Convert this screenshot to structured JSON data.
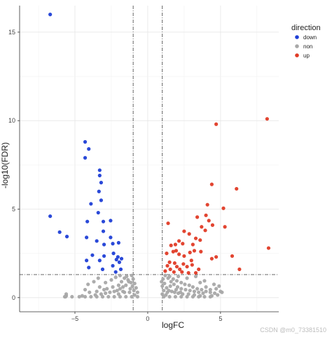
{
  "chart_data": {
    "type": "scatter",
    "xlabel": "logFC",
    "ylabel": "-log10(FDR)",
    "xlim": [
      -8.8,
      9.0
    ],
    "ylim": [
      -0.8,
      16.5
    ],
    "xticks": [
      -5,
      0,
      5
    ],
    "yticks": [
      0,
      5,
      10,
      15
    ],
    "grid": true,
    "legend": {
      "title": "direction",
      "placement": "top-right"
    },
    "thresholds": {
      "logFC": [
        -1,
        1
      ],
      "neg_log10_fdr": 1.3
    },
    "series": [
      {
        "name": "down",
        "color": "#1f3fd6",
        "points": [
          [
            -6.7,
            16.0
          ],
          [
            -4.3,
            8.8
          ],
          [
            -4.05,
            8.4
          ],
          [
            -4.3,
            7.9
          ],
          [
            -3.3,
            7.2
          ],
          [
            -3.3,
            6.9
          ],
          [
            -3.2,
            6.5
          ],
          [
            -3.35,
            6.0
          ],
          [
            -3.2,
            5.5
          ],
          [
            -3.9,
            5.3
          ],
          [
            -3.4,
            4.8
          ],
          [
            -6.7,
            4.6
          ],
          [
            -6.05,
            3.7
          ],
          [
            -5.55,
            3.45
          ],
          [
            -4.15,
            4.3
          ],
          [
            -3.05,
            4.3
          ],
          [
            -2.55,
            4.35
          ],
          [
            -3.05,
            3.75
          ],
          [
            -2.55,
            3.4
          ],
          [
            -4.2,
            3.4
          ],
          [
            -3.5,
            3.2
          ],
          [
            -3.0,
            3.0
          ],
          [
            -2.4,
            3.05
          ],
          [
            -2.0,
            3.1
          ],
          [
            -2.35,
            2.5
          ],
          [
            -3.8,
            2.4
          ],
          [
            -3.0,
            2.35
          ],
          [
            -2.05,
            2.3
          ],
          [
            -1.8,
            2.2
          ],
          [
            -2.15,
            2.15
          ],
          [
            -4.2,
            2.1
          ],
          [
            -3.3,
            2.1
          ],
          [
            -1.95,
            2.0
          ],
          [
            -2.4,
            1.8
          ],
          [
            -4.05,
            1.7
          ],
          [
            -3.1,
            1.6
          ],
          [
            -1.85,
            1.6
          ],
          [
            -2.2,
            1.45
          ]
        ]
      },
      {
        "name": "non",
        "color": "#a8a8a8",
        "points": [
          [
            -5.7,
            0.05
          ],
          [
            -5.2,
            0.05
          ],
          [
            -4.7,
            0.05
          ],
          [
            -4.3,
            0.05
          ],
          [
            -3.9,
            0.05
          ],
          [
            -3.5,
            0.05
          ],
          [
            -3.1,
            0.05
          ],
          [
            -2.7,
            0.05
          ],
          [
            -2.3,
            0.05
          ],
          [
            -1.9,
            0.05
          ],
          [
            -1.5,
            0.05
          ],
          [
            -1.1,
            0.05
          ],
          [
            -0.7,
            0.05
          ],
          [
            1.1,
            0.05
          ],
          [
            1.5,
            0.05
          ],
          [
            1.9,
            0.05
          ],
          [
            2.3,
            0.05
          ],
          [
            2.7,
            0.05
          ],
          [
            3.1,
            0.05
          ],
          [
            3.5,
            0.05
          ],
          [
            3.9,
            0.05
          ],
          [
            4.3,
            0.05
          ],
          [
            -5.6,
            0.1
          ],
          [
            -0.9,
            0.15
          ],
          [
            -0.7,
            0.3
          ],
          [
            -0.8,
            0.55
          ],
          [
            -0.9,
            0.8
          ],
          [
            -1.0,
            1.05
          ],
          [
            -1.1,
            1.25
          ],
          [
            -1.3,
            0.9
          ],
          [
            -1.5,
            0.7
          ],
          [
            -1.7,
            0.6
          ],
          [
            -1.9,
            0.5
          ],
          [
            -2.1,
            0.4
          ],
          [
            -2.3,
            0.35
          ],
          [
            -2.6,
            0.3
          ],
          [
            -2.9,
            0.25
          ],
          [
            -3.2,
            0.2
          ],
          [
            -3.6,
            0.15
          ],
          [
            -1.6,
            1.1
          ],
          [
            -1.8,
            0.9
          ],
          [
            -2.0,
            0.7
          ],
          [
            -2.4,
            0.6
          ],
          [
            -2.8,
            0.5
          ],
          [
            -3.0,
            0.45
          ],
          [
            -3.3,
            0.6
          ],
          [
            -2.9,
            0.85
          ],
          [
            -2.5,
            1.0
          ],
          [
            -2.2,
            1.15
          ],
          [
            -1.9,
            1.25
          ],
          [
            -1.45,
            1.2
          ],
          [
            -1.2,
            0.5
          ],
          [
            -1.25,
            0.3
          ],
          [
            -1.6,
            0.3
          ],
          [
            -2.0,
            0.2
          ],
          [
            -3.5,
            0.35
          ],
          [
            -4.0,
            0.3
          ],
          [
            -4.3,
            0.45
          ],
          [
            -3.7,
            0.9
          ],
          [
            -3.4,
            1.1
          ],
          [
            -4.1,
            0.75
          ],
          [
            -4.5,
            0.1
          ],
          [
            -5.6,
            0.2
          ],
          [
            -1.35,
            1.0
          ],
          [
            -1.7,
            0.35
          ],
          [
            -0.95,
            0.4
          ],
          [
            -1.05,
            0.65
          ],
          [
            -1.15,
            0.85
          ],
          [
            1.0,
            0.2
          ],
          [
            1.1,
            0.4
          ],
          [
            1.0,
            0.65
          ],
          [
            1.15,
            0.8
          ],
          [
            1.05,
            1.05
          ],
          [
            1.2,
            1.25
          ],
          [
            1.3,
            0.55
          ],
          [
            1.45,
            0.4
          ],
          [
            1.65,
            0.35
          ],
          [
            1.85,
            0.3
          ],
          [
            2.1,
            0.25
          ],
          [
            2.4,
            0.2
          ],
          [
            2.8,
            0.2
          ],
          [
            3.2,
            0.15
          ],
          [
            3.6,
            0.1
          ],
          [
            1.4,
            1.1
          ],
          [
            1.6,
            0.9
          ],
          [
            1.8,
            0.75
          ],
          [
            2.05,
            0.6
          ],
          [
            2.3,
            0.5
          ],
          [
            2.6,
            0.45
          ],
          [
            2.9,
            0.4
          ],
          [
            3.2,
            0.35
          ],
          [
            3.5,
            0.3
          ],
          [
            3.8,
            0.25
          ],
          [
            1.5,
            1.2
          ],
          [
            1.75,
            1.05
          ],
          [
            2.0,
            0.95
          ],
          [
            2.3,
            0.85
          ],
          [
            2.55,
            0.75
          ],
          [
            2.85,
            0.7
          ],
          [
            3.1,
            0.6
          ],
          [
            3.4,
            0.5
          ],
          [
            3.7,
            0.45
          ],
          [
            4.0,
            0.35
          ],
          [
            4.3,
            0.3
          ],
          [
            4.6,
            0.25
          ],
          [
            4.3,
            0.45
          ],
          [
            4.0,
            0.6
          ],
          [
            4.7,
            0.5
          ],
          [
            5.0,
            0.35
          ],
          [
            4.55,
            0.75
          ],
          [
            4.9,
            0.65
          ],
          [
            5.1,
            0.3
          ],
          [
            3.6,
            0.85
          ],
          [
            3.9,
            0.95
          ],
          [
            2.7,
            1.1
          ],
          [
            3.3,
            1.2
          ],
          [
            2.1,
            1.2
          ],
          [
            1.25,
            0.15
          ],
          [
            1.55,
            0.65
          ],
          [
            1.95,
            0.45
          ],
          [
            2.25,
            0.3
          ],
          [
            0.95,
            0.9
          ],
          [
            1.35,
            0.3
          ],
          [
            4.4,
            0.1
          ],
          [
            4.8,
            0.15
          ],
          [
            -5.65,
            0.05
          ]
        ]
      },
      {
        "name": "up",
        "color": "#e03b26",
        "points": [
          [
            8.2,
            10.1
          ],
          [
            4.7,
            9.8
          ],
          [
            8.3,
            2.8
          ],
          [
            6.1,
            6.15
          ],
          [
            4.4,
            6.4
          ],
          [
            4.1,
            5.25
          ],
          [
            5.2,
            5.05
          ],
          [
            4.0,
            4.65
          ],
          [
            3.4,
            4.55
          ],
          [
            4.2,
            4.35
          ],
          [
            4.45,
            4.1
          ],
          [
            1.4,
            4.2
          ],
          [
            3.7,
            4.0
          ],
          [
            2.5,
            3.75
          ],
          [
            2.85,
            3.6
          ],
          [
            3.95,
            3.8
          ],
          [
            5.3,
            4.0
          ],
          [
            3.3,
            3.35
          ],
          [
            3.6,
            3.25
          ],
          [
            2.15,
            3.2
          ],
          [
            1.9,
            3.0
          ],
          [
            2.4,
            3.05
          ],
          [
            1.6,
            2.95
          ],
          [
            3.1,
            3.0
          ],
          [
            1.95,
            2.65
          ],
          [
            3.2,
            2.65
          ],
          [
            1.75,
            2.6
          ],
          [
            2.9,
            2.55
          ],
          [
            1.3,
            2.5
          ],
          [
            2.15,
            2.45
          ],
          [
            2.5,
            2.35
          ],
          [
            3.65,
            2.6
          ],
          [
            4.4,
            2.2
          ],
          [
            4.7,
            2.3
          ],
          [
            5.8,
            2.35
          ],
          [
            3.0,
            2.1
          ],
          [
            1.5,
            2.0
          ],
          [
            1.85,
            1.95
          ],
          [
            2.45,
            1.9
          ],
          [
            3.05,
            1.85
          ],
          [
            1.35,
            1.8
          ],
          [
            2.0,
            1.75
          ],
          [
            2.7,
            1.75
          ],
          [
            3.5,
            1.6
          ],
          [
            1.55,
            1.6
          ],
          [
            2.2,
            1.6
          ],
          [
            1.8,
            1.45
          ],
          [
            2.35,
            1.45
          ],
          [
            2.8,
            1.4
          ],
          [
            3.3,
            1.4
          ],
          [
            6.3,
            1.6
          ],
          [
            1.2,
            1.5
          ]
        ]
      }
    ]
  },
  "page": {
    "watermark": "CSDN @m0_73381510"
  }
}
